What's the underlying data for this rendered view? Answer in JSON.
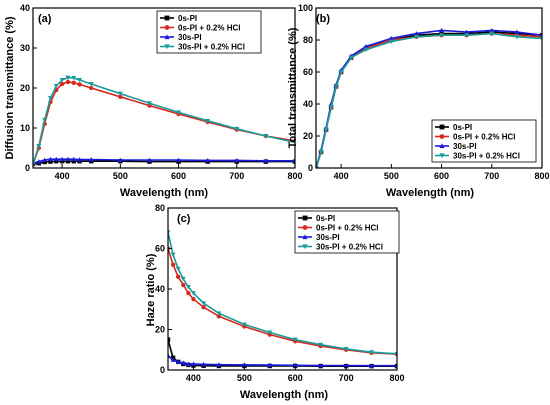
{
  "chart_data": [
    {
      "type": "line",
      "panel_label": "(a)",
      "xlabel": "Wavelength (nm)",
      "ylabel": "Diffusion transmittance (%)",
      "xlim": [
        350,
        800
      ],
      "ylim": [
        0,
        40
      ],
      "xticks": [
        400,
        500,
        600,
        700,
        800
      ],
      "yticks": [
        0,
        10,
        20,
        30,
        40
      ],
      "legend_position": "top-right",
      "x": [
        350,
        360,
        370,
        380,
        390,
        400,
        410,
        420,
        430,
        450,
        500,
        550,
        600,
        650,
        700,
        750,
        800
      ],
      "series": [
        {
          "name": "0s-PI",
          "color": "#000000",
          "marker": "square",
          "values": [
            1.0,
            1.2,
            1.5,
            1.6,
            1.7,
            1.7,
            1.7,
            1.7,
            1.7,
            1.7,
            1.7,
            1.6,
            1.6,
            1.6,
            1.6,
            1.6,
            1.6
          ]
        },
        {
          "name": "0s-PI + 0.2% HCl",
          "color": "#d62a1e",
          "marker": "circle",
          "values": [
            1.0,
            5.0,
            11.0,
            16.5,
            19.5,
            21.0,
            21.5,
            21.3,
            20.9,
            20.0,
            17.8,
            15.6,
            13.5,
            11.5,
            9.6,
            8.0,
            6.8
          ]
        },
        {
          "name": "30s-PI",
          "color": "#1a1adc",
          "marker": "triangle-up",
          "values": [
            1.2,
            1.6,
            2.0,
            2.2,
            2.2,
            2.2,
            2.2,
            2.2,
            2.1,
            2.1,
            2.0,
            2.0,
            2.0,
            1.9,
            1.9,
            1.8,
            1.8
          ]
        },
        {
          "name": "30s-PI + 0.2% HCl",
          "color": "#1a9a9a",
          "marker": "triangle-down",
          "values": [
            1.0,
            5.5,
            12.0,
            17.5,
            20.5,
            22.0,
            22.6,
            22.5,
            22.0,
            21.0,
            18.6,
            16.2,
            13.9,
            11.8,
            9.8,
            8.0,
            6.4
          ]
        }
      ]
    },
    {
      "type": "line",
      "panel_label": "(b)",
      "xlabel": "Wavelength (nm)",
      "ylabel": "Total transmittance (%)",
      "xlim": [
        350,
        800
      ],
      "ylim": [
        0,
        100
      ],
      "xticks": [
        400,
        500,
        600,
        700,
        800
      ],
      "yticks": [
        0,
        20,
        40,
        60,
        80,
        100
      ],
      "legend_position": "bottom-right",
      "x": [
        350,
        360,
        370,
        380,
        390,
        400,
        420,
        450,
        500,
        550,
        600,
        650,
        700,
        750,
        800
      ],
      "series": [
        {
          "name": "0s-PI",
          "color": "#000000",
          "marker": "square",
          "values": [
            0,
            10,
            24,
            38,
            51,
            60,
            69,
            75,
            80,
            83,
            84,
            84,
            85,
            84,
            83
          ]
        },
        {
          "name": "0s-PI + 0.2% HCl",
          "color": "#d62a1e",
          "marker": "circle",
          "values": [
            0,
            10,
            24,
            38,
            51,
            60,
            69,
            75,
            80,
            82,
            83,
            83,
            84,
            83,
            82
          ]
        },
        {
          "name": "30s-PI",
          "color": "#1a1adc",
          "marker": "triangle-up",
          "values": [
            0,
            11,
            25,
            40,
            52,
            61,
            70,
            76,
            81,
            84,
            86,
            85,
            86,
            85,
            83
          ]
        },
        {
          "name": "30s-PI + 0.2% HCl",
          "color": "#1a9a9a",
          "marker": "triangle-down",
          "values": [
            0,
            10,
            24,
            38,
            51,
            60,
            69,
            74,
            79,
            82,
            83,
            83,
            84,
            82,
            81
          ]
        }
      ]
    },
    {
      "type": "line",
      "panel_label": "(c)",
      "xlabel": "Wavelength (nm)",
      "ylabel": "Haze ratio (%)",
      "xlim": [
        350,
        800
      ],
      "ylim": [
        0,
        80
      ],
      "xticks": [
        400,
        500,
        600,
        700,
        800
      ],
      "yticks": [
        0,
        20,
        40,
        60,
        80
      ],
      "legend_position": "top-right",
      "x": [
        350,
        360,
        370,
        380,
        390,
        400,
        420,
        450,
        500,
        550,
        600,
        650,
        700,
        750,
        800
      ],
      "series": [
        {
          "name": "0s-PI",
          "color": "#000000",
          "marker": "square",
          "values": [
            15,
            6,
            4,
            3,
            2.5,
            2.2,
            2.1,
            2.0,
            2.0,
            2.0,
            2.0,
            1.9,
            1.9,
            1.9,
            1.9
          ]
        },
        {
          "name": "0s-PI + 0.2% HCl",
          "color": "#d62a1e",
          "marker": "circle",
          "values": [
            60,
            52,
            46,
            42,
            38,
            35,
            31,
            26.5,
            21.5,
            17.5,
            14.2,
            11.8,
            10.0,
            8.5,
            7.8
          ]
        },
        {
          "name": "30s-PI",
          "color": "#1a1adc",
          "marker": "triangle-up",
          "values": [
            7,
            5,
            4,
            3.5,
            3,
            3,
            2.8,
            2.6,
            2.5,
            2.4,
            2.3,
            2.2,
            2.2,
            2.1,
            2.1
          ]
        },
        {
          "name": "30s-PI + 0.2% HCl",
          "color": "#1a9a9a",
          "marker": "triangle-down",
          "values": [
            68,
            57,
            50,
            45,
            41,
            38,
            33,
            28,
            22.5,
            18.5,
            15.0,
            12.5,
            10.4,
            8.8,
            8.0
          ]
        }
      ]
    }
  ]
}
